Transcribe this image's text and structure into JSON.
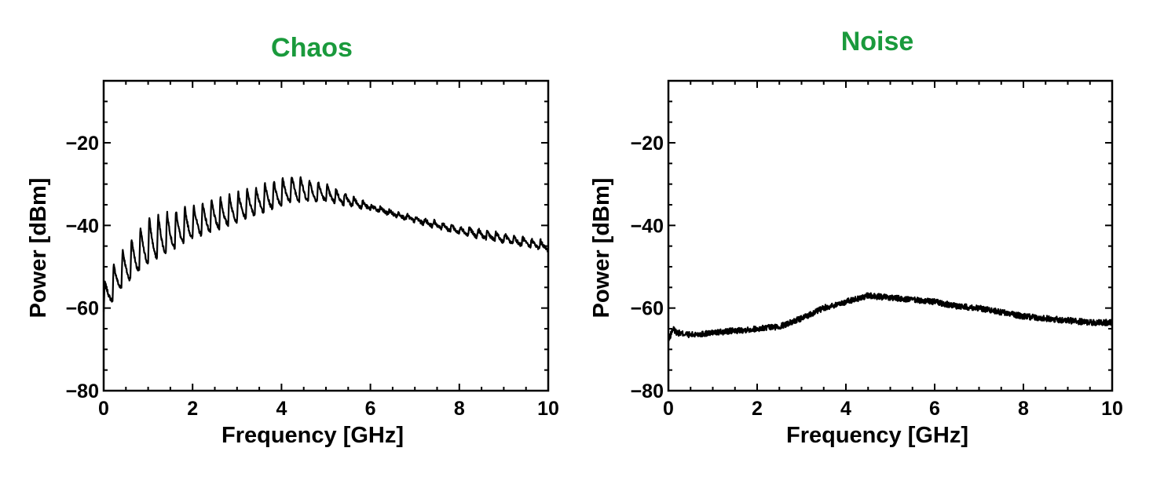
{
  "colors": {
    "title": "#1a9a3c",
    "axis": "#000000",
    "trace": "#000000",
    "background": "#ffffff"
  },
  "chart_data": [
    {
      "type": "line",
      "title": "Chaos",
      "xlabel": "Frequency [GHz]",
      "ylabel": "Power [dBm]",
      "xlim": [
        0,
        10
      ],
      "ylim": [
        -80,
        -5
      ],
      "xticks": [
        0,
        2,
        4,
        6,
        8,
        10
      ],
      "xtick_labels": [
        "0",
        "2",
        "4",
        "6",
        "8",
        "10"
      ],
      "yticks": [
        -80,
        -60,
        -40,
        -20
      ],
      "ytick_labels": [
        "−80",
        "−60",
        "−40",
        "−20"
      ],
      "grid": false,
      "series": [
        {
          "comb_spacing_ghz": 0.2,
          "peak_envelope": {
            "x": [
              0,
              0.4,
              1,
              2,
              3,
              4,
              4.3,
              5,
              6,
              7,
              8,
              9,
              10
            ],
            "y": [
              -54,
              -46,
              -38,
              -35,
              -32,
              -28.5,
              -27.5,
              -30,
              -35,
              -38,
              -40,
              -42,
              -44
            ]
          },
          "trough_envelope": {
            "x": [
              0,
              0.4,
              1,
              2,
              3,
              4,
              4.3,
              5,
              6,
              7,
              8,
              9,
              10
            ],
            "y": [
              -61,
              -55,
              -49,
              -43,
              -39,
              -35,
              -34,
              -34,
              -36,
              -39,
              -42,
              -44,
              -46
            ]
          }
        }
      ]
    },
    {
      "type": "line",
      "title": "Noise",
      "xlabel": "Frequency [GHz]",
      "ylabel": "Power [dBm]",
      "xlim": [
        0,
        10
      ],
      "ylim": [
        -80,
        -5
      ],
      "xticks": [
        0,
        2,
        4,
        6,
        8,
        10
      ],
      "xtick_labels": [
        "0",
        "2",
        "4",
        "6",
        "8",
        "10"
      ],
      "yticks": [
        -80,
        -60,
        -40,
        -20
      ],
      "ytick_labels": [
        "−80",
        "−60",
        "−40",
        "−20"
      ],
      "grid": false,
      "series": [
        {
          "x": [
            0,
            0.1,
            0.2,
            0.5,
            1,
            2,
            2.5,
            3,
            3.5,
            4,
            4.5,
            5,
            5.5,
            6,
            6.5,
            7,
            7.5,
            8,
            8.5,
            9,
            9.5,
            10
          ],
          "y": [
            -68,
            -65,
            -66,
            -66.5,
            -66,
            -65,
            -64.5,
            -62.5,
            -60,
            -58.5,
            -57,
            -57.5,
            -58,
            -58.5,
            -59.5,
            -60,
            -61,
            -62,
            -62.5,
            -63,
            -63.5,
            -63.5
          ]
        }
      ]
    }
  ]
}
